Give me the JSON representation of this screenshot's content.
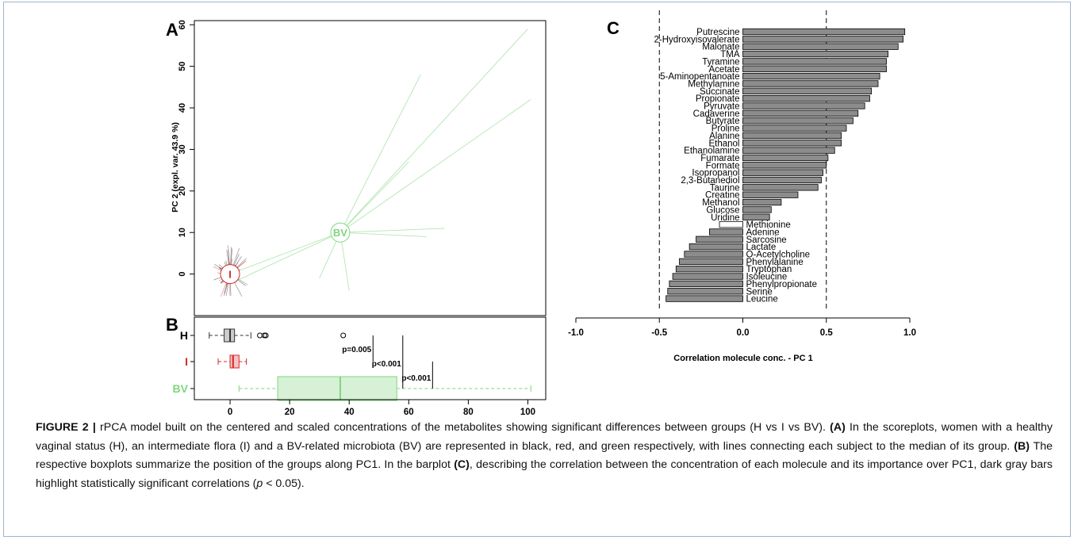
{
  "panel_labels": {
    "a": "A",
    "b": "B",
    "c": "C"
  },
  "caption": {
    "lead": "FIGURE 2 |",
    "text1": " rPCA model built on the centered and scaled concentrations of the metabolites showing significant differences between groups (H vs I vs BV). ",
    "a": "(A)",
    "text2": " In the scoreplots, women with a healthy vaginal status (H), an intermediate flora (I) and a BV-related microbiota (BV) are represented in black, red, and green respectively, with lines connecting each subject to the median of its group. ",
    "b": "(B)",
    "text3": " The respective boxplots summarize the position of the groups along PC1. In the barplot ",
    "c": "(C)",
    "text4": ", describing the correlation between the concentration of each molecule and its importance over PC1, dark gray bars highlight statistically significant correlations (",
    "p": "p",
    "text5": " < 0.05)."
  },
  "colors": {
    "H": "#333333",
    "I": "#d62728",
    "BV": "#7fd67f",
    "bar_significant": "#8c8c8c",
    "bar_ns": "#ffffff"
  },
  "chart_data": [
    {
      "type": "scatter",
      "panel": "A",
      "ylabel": "PC 2 (expl. var. 43.9 %)",
      "ylim": [
        -10,
        61
      ],
      "yticks": [
        0,
        10,
        20,
        30,
        40,
        50,
        60
      ],
      "groups": [
        {
          "name": "I",
          "center": [
            0,
            0
          ]
        },
        {
          "name": "BV",
          "center": [
            37,
            10
          ]
        }
      ],
      "bv_spokes_to": [
        [
          100,
          59
        ],
        [
          64,
          48
        ],
        [
          101,
          42
        ],
        [
          60,
          27
        ],
        [
          72,
          11
        ],
        [
          66,
          9
        ],
        [
          30,
          -1
        ],
        [
          40,
          -4
        ],
        [
          0,
          0
        ],
        [
          1,
          -2
        ]
      ]
    },
    {
      "type": "box",
      "panel": "B",
      "categories": [
        "H",
        "I",
        "BV"
      ],
      "xlim": [
        -12,
        106
      ],
      "xticks": [
        0,
        20,
        40,
        60,
        80,
        100
      ],
      "boxes": [
        {
          "name": "H",
          "whisker_low": -7,
          "q1": -2,
          "median": 0,
          "q3": 1.5,
          "whisker_high": 7,
          "outliers": [
            10,
            11.5,
            12,
            38
          ]
        },
        {
          "name": "I",
          "whisker_low": -4,
          "q1": 0,
          "median": 1,
          "q3": 3,
          "whisker_high": 5.5,
          "outliers": []
        },
        {
          "name": "BV",
          "whisker_low": 3,
          "q1": 16,
          "median": 37,
          "q3": 56,
          "whisker_high": 101,
          "outliers": []
        }
      ],
      "annotations": [
        {
          "text": "p=0.005",
          "x": 48
        },
        {
          "text": "p<0.001",
          "x": 58
        },
        {
          "text": "p<0.001",
          "x": 68
        }
      ]
    },
    {
      "type": "bar",
      "panel": "C",
      "xlabel": "Correlation molecule conc. - PC 1",
      "xlim": [
        -1.0,
        1.0
      ],
      "xtick_labels": [
        "-1.0",
        "-0.5",
        "0.0",
        "0.5",
        "1.0"
      ],
      "xticks": [
        -1.0,
        -0.5,
        0.0,
        0.5,
        1.0
      ],
      "reference_lines": [
        -0.5,
        0.5
      ],
      "categories": [
        "Putrescine",
        "2-Hydroxyisovalerate",
        "Malonate",
        "TMA",
        "Tyramine",
        "Acetate",
        "5-Aminopentanoate",
        "Methylamine",
        "Succinate",
        "Propionate",
        "Pyruvate",
        "Cadaverine",
        "Butyrate",
        "Proline",
        "Alanine",
        "Ethanol",
        "Ethanolamine",
        "Fumarate",
        "Formate",
        "Isopropanol",
        "2,3-Butanediol",
        "Taurine",
        "Creatine",
        "Methanol",
        "Glucose",
        "Uridine",
        "Methionine",
        "Adenine",
        "Sarcosine",
        "Lactate",
        "O-Acetylcholine",
        "Phenylalanine",
        "Tryptophan",
        "Isoleucine",
        "Phenylpropionate",
        "Serine",
        "Leucine"
      ],
      "values": [
        0.97,
        0.96,
        0.93,
        0.87,
        0.86,
        0.86,
        0.82,
        0.81,
        0.77,
        0.76,
        0.73,
        0.69,
        0.66,
        0.62,
        0.59,
        0.59,
        0.55,
        0.51,
        0.5,
        0.48,
        0.47,
        0.45,
        0.33,
        0.23,
        0.17,
        0.16,
        -0.14,
        -0.2,
        -0.28,
        -0.32,
        -0.35,
        -0.38,
        -0.4,
        -0.42,
        -0.44,
        -0.45,
        -0.46
      ],
      "significant": [
        true,
        true,
        true,
        true,
        true,
        true,
        true,
        true,
        true,
        true,
        true,
        true,
        true,
        true,
        true,
        true,
        true,
        true,
        true,
        true,
        true,
        true,
        true,
        true,
        true,
        true,
        false,
        true,
        true,
        true,
        true,
        true,
        true,
        true,
        true,
        true,
        true
      ]
    }
  ]
}
